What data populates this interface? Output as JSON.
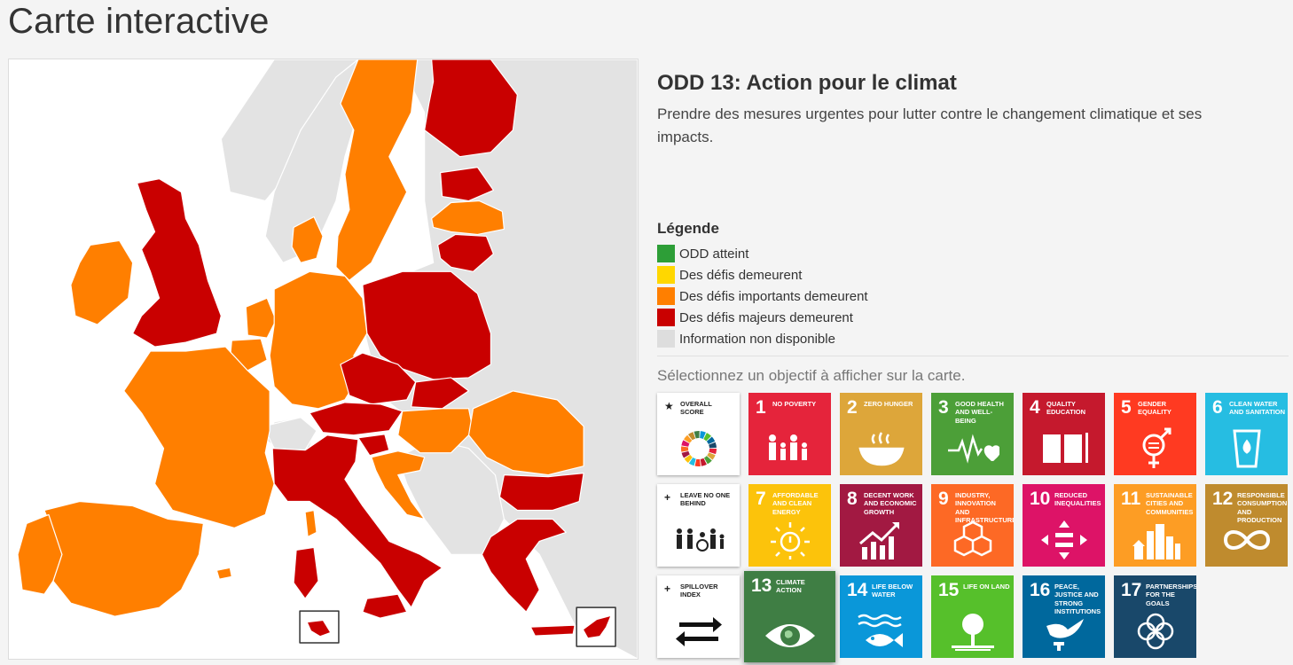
{
  "page": {
    "title": "Carte interactive"
  },
  "goal": {
    "title": "ODD 13: Action pour le climat",
    "description": "Prendre des mesures urgentes pour lutter contre le changement climatique et ses impacts."
  },
  "legend": {
    "title": "Légende",
    "items": [
      {
        "label": "ODD atteint",
        "color": "#2d9e37"
      },
      {
        "label": "Des défis demeurent",
        "color": "#ffd700"
      },
      {
        "label": "Des défis importants demeurent",
        "color": "#ff7f00"
      },
      {
        "label": "Des défis majeurs demeurent",
        "color": "#c90000"
      },
      {
        "label": "Information non disponible",
        "color": "#dddddd"
      }
    ]
  },
  "prompt": "Sélectionnez un objectif à afficher sur la carte.",
  "colors": {
    "orange": "#ff7f00",
    "red": "#c90000",
    "grey": "#e3e3e3",
    "sea": "#ffffff"
  },
  "tiles": [
    {
      "symbol": "★",
      "label": "Overall score",
      "color": "#ffffff",
      "icon": "sdg-wheel-icon"
    },
    {
      "number": "1",
      "label": "No poverty",
      "color": "#e5243b",
      "icon": "family-icon"
    },
    {
      "number": "2",
      "label": "Zero hunger",
      "color": "#dda63a",
      "icon": "bowl-icon"
    },
    {
      "number": "3",
      "label": "Good health and well-being",
      "color": "#4c9f38",
      "icon": "heartbeat-icon"
    },
    {
      "number": "4",
      "label": "Quality education",
      "color": "#c5192d",
      "icon": "book-icon"
    },
    {
      "number": "5",
      "label": "Gender equality",
      "color": "#ff3a21",
      "icon": "gender-icon"
    },
    {
      "number": "6",
      "label": "Clean water and sanitation",
      "color": "#26bde2",
      "icon": "water-glass-icon"
    },
    {
      "symbol": "+",
      "label": "Leave no one behind",
      "color": "#ffffff",
      "icon": "people-icon"
    },
    {
      "number": "7",
      "label": "Affordable and clean energy",
      "color": "#fcc30b",
      "icon": "sun-power-icon"
    },
    {
      "number": "8",
      "label": "Decent work and economic growth",
      "color": "#a21942",
      "icon": "growth-chart-icon"
    },
    {
      "number": "9",
      "label": "Industry, innovation and infrastructure",
      "color": "#fd6925",
      "icon": "cubes-icon"
    },
    {
      "number": "10",
      "label": "Reduced inequalities",
      "color": "#dd1367",
      "icon": "equality-arrows-icon"
    },
    {
      "number": "11",
      "label": "Sustainable cities and communities",
      "color": "#fd9d24",
      "icon": "city-icon"
    },
    {
      "number": "12",
      "label": "Responsible consumption and production",
      "color": "#bf8b2e",
      "icon": "infinity-icon"
    },
    {
      "symbol": "+",
      "label": "Spillover index",
      "color": "#ffffff",
      "icon": "exchange-arrows-icon"
    },
    {
      "number": "13",
      "label": "Climate action",
      "color": "#3f7e44",
      "icon": "eye-globe-icon",
      "selected": true
    },
    {
      "number": "14",
      "label": "Life below water",
      "color": "#0a97d9",
      "icon": "fish-icon"
    },
    {
      "number": "15",
      "label": "Life on land",
      "color": "#56c02b",
      "icon": "tree-icon"
    },
    {
      "number": "16",
      "label": "Peace, justice and strong institutions",
      "color": "#00689d",
      "icon": "dove-icon"
    },
    {
      "number": "17",
      "label": "Partnerships for the goals",
      "color": "#19486a",
      "icon": "rings-icon"
    }
  ]
}
